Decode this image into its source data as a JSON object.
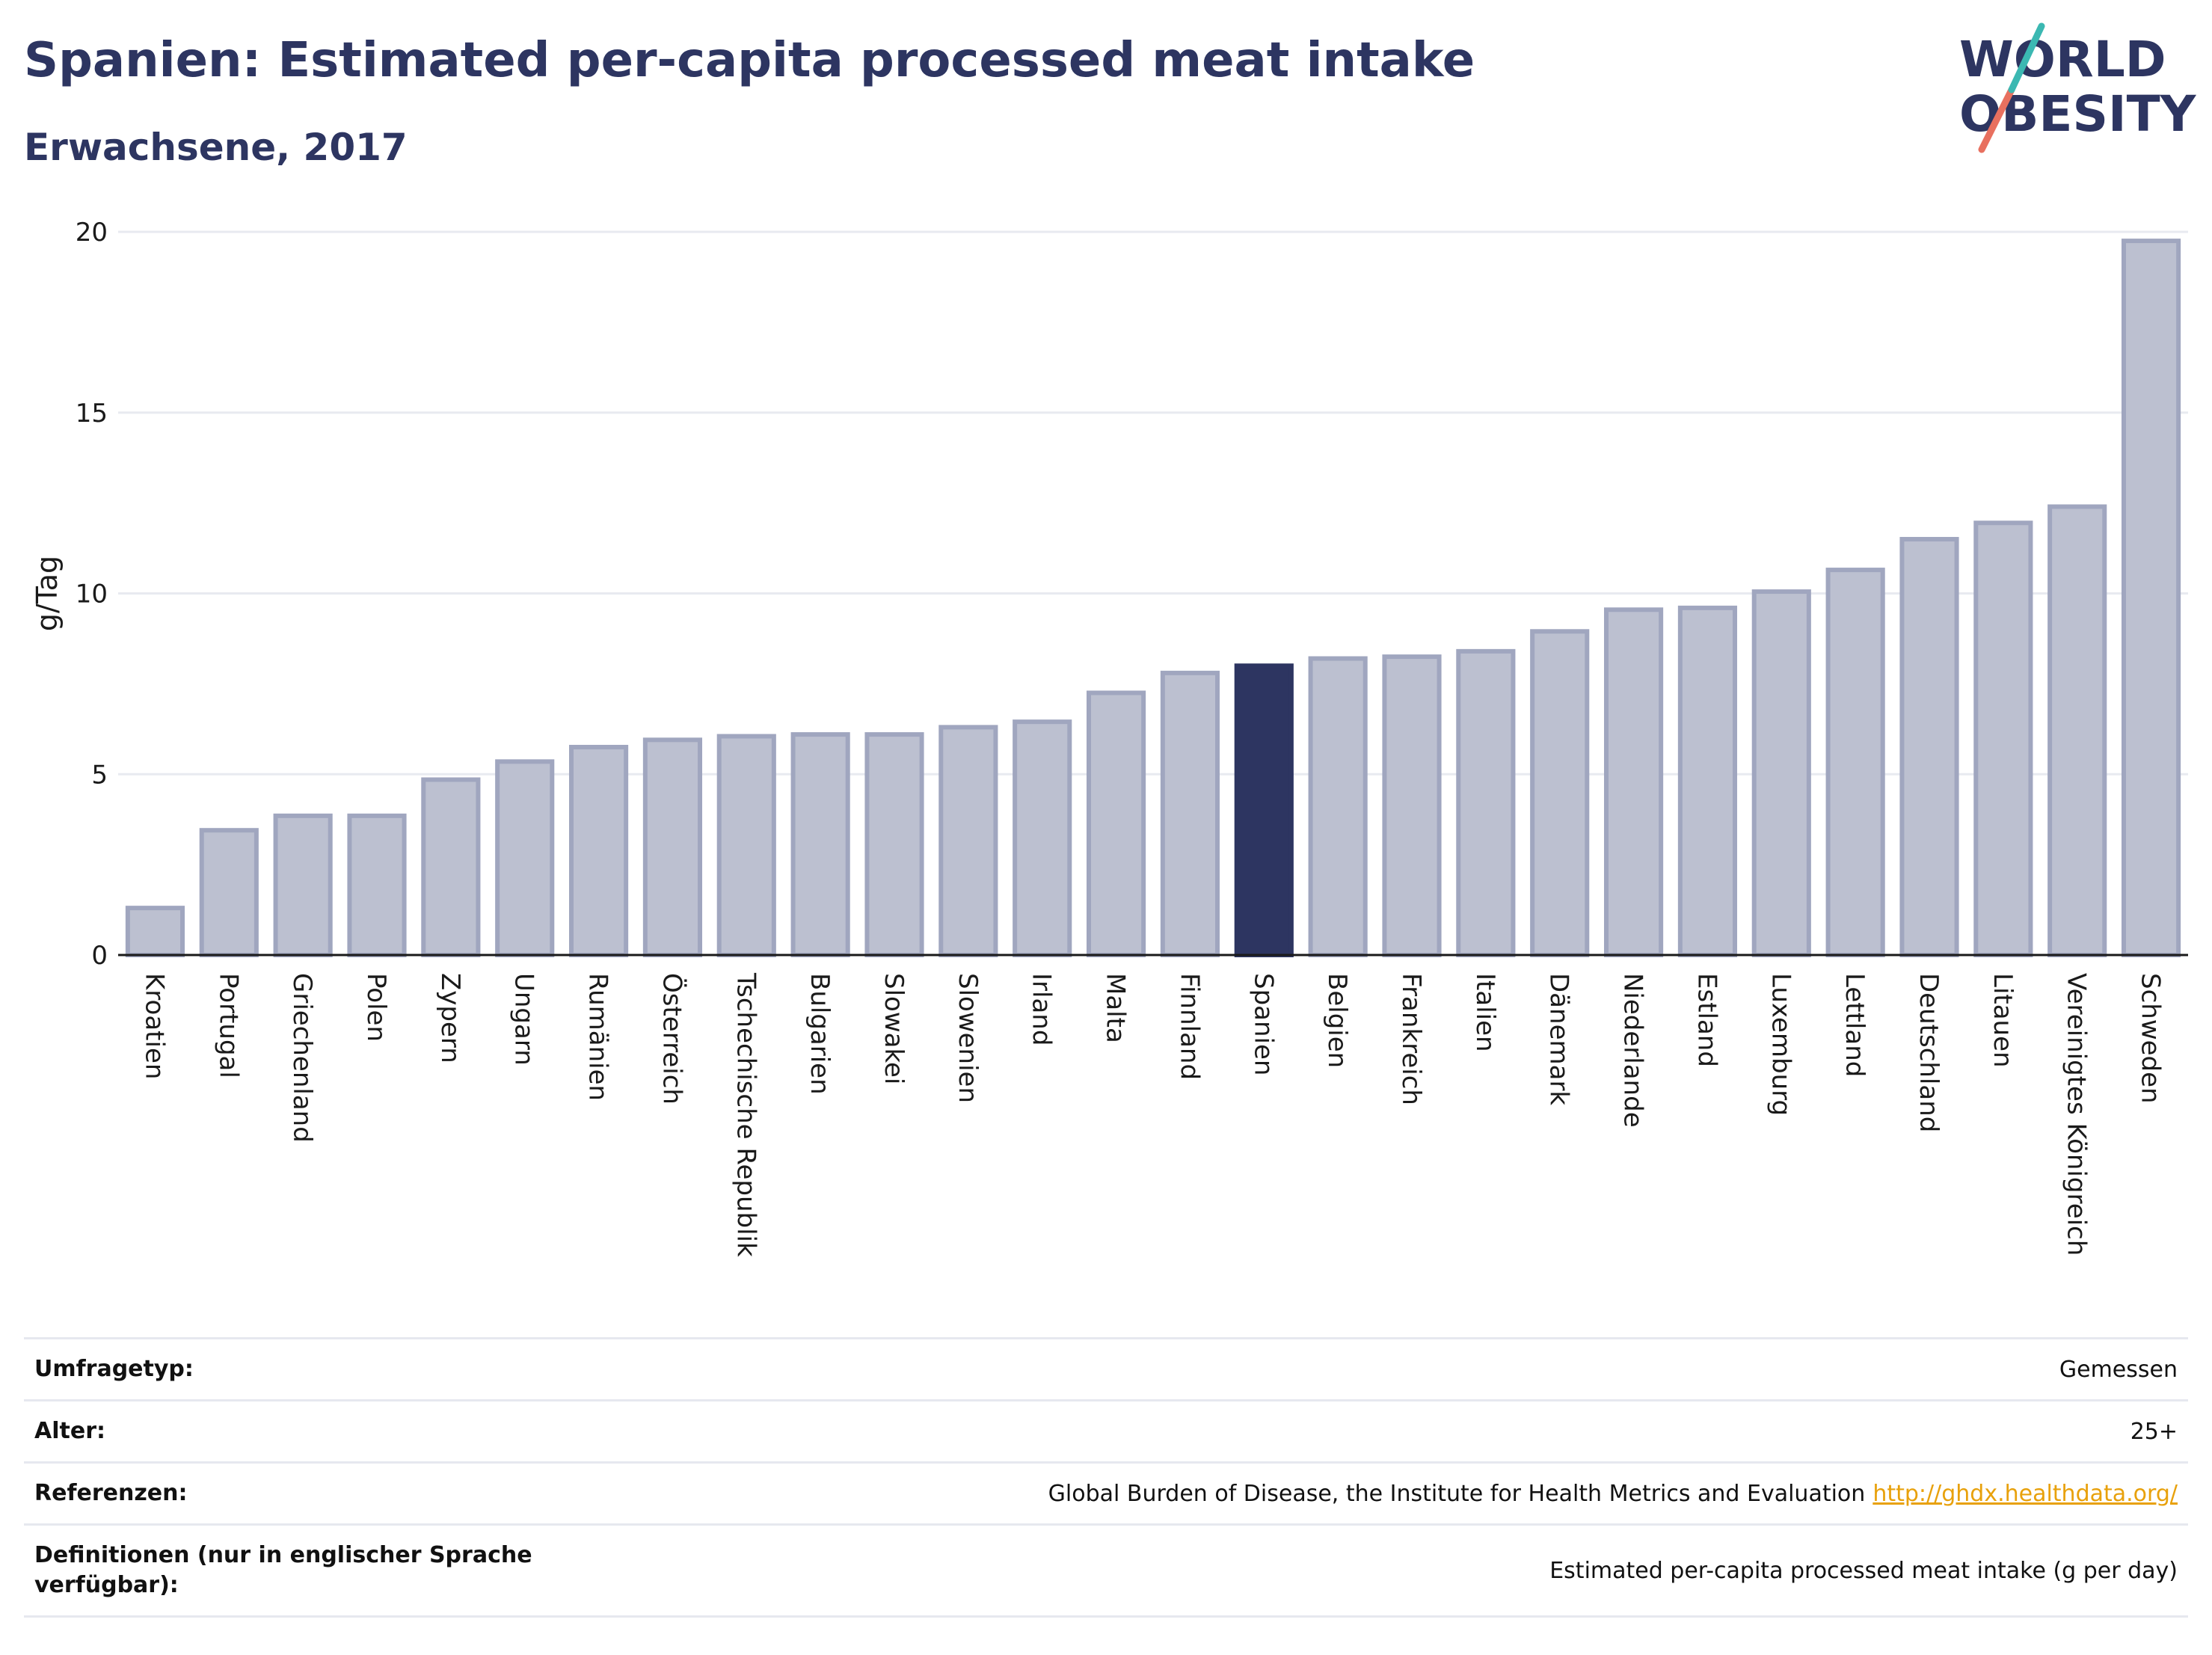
{
  "title": "Spanien: Estimated per-capita processed meat intake",
  "subtitle": "Erwachsene, 2017",
  "logo": {
    "line1": "WORLD",
    "line2": "OBESITY"
  },
  "colors": {
    "highlight": "#2d3561",
    "bar": "#bcc0d0",
    "bar_border": "#a0a6bf",
    "title": "#2d3561"
  },
  "chart_data": {
    "type": "bar",
    "ylabel": "g/Tag",
    "ylim": [
      0,
      20
    ],
    "yticks": [
      0,
      5,
      10,
      15,
      20
    ],
    "grid": true,
    "highlight": "Spanien",
    "categories": [
      "Kroatien",
      "Portugal",
      "Griechenland",
      "Polen",
      "Zypern",
      "Ungarn",
      "Rumänien",
      "Österreich",
      "Tschechische Republik",
      "Bulgarien",
      "Slowakei",
      "Slowenien",
      "Irland",
      "Malta",
      "Finnland",
      "Spanien",
      "Belgien",
      "Frankreich",
      "Italien",
      "Dänemark",
      "Niederlande",
      "Estland",
      "Luxemburg",
      "Lettland",
      "Deutschland",
      "Litauen",
      "Vereinigtes Königreich",
      "Schweden"
    ],
    "values": [
      1.3,
      3.45,
      3.85,
      3.85,
      4.85,
      5.35,
      5.75,
      5.95,
      6.05,
      6.1,
      6.1,
      6.3,
      6.45,
      7.25,
      7.8,
      8.0,
      8.2,
      8.25,
      8.4,
      8.95,
      9.55,
      9.6,
      10.05,
      10.65,
      11.5,
      11.95,
      12.4,
      19.75
    ]
  },
  "meta": {
    "survey_type": {
      "label": "Umfragetyp:",
      "value": "Gemessen"
    },
    "age": {
      "label": "Alter:",
      "value": "25+"
    },
    "references": {
      "label": "Referenzen:",
      "value": "Global Burden of Disease, the Institute for Health Metrics and Evaluation",
      "link": "http://ghdx.healthdata.org/"
    },
    "definitions": {
      "label": "Definitionen (nur in englischer Sprache verfügbar):",
      "value": "Estimated per-capita processed meat intake (g per day)"
    }
  }
}
